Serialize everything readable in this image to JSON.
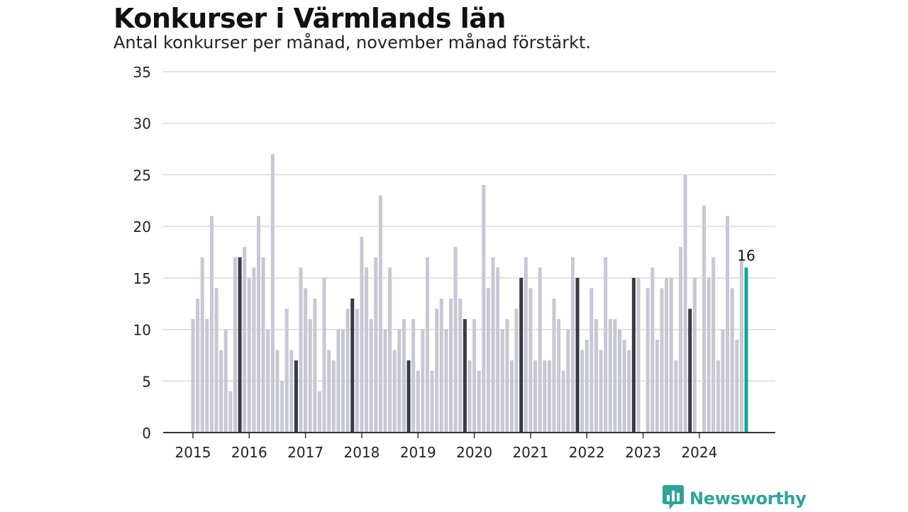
{
  "header": {
    "title": "Konkurser i Värmlands län",
    "subtitle": "Antal konkurser per månad, november månad förstärkt."
  },
  "brand": {
    "name": "Newsworthy",
    "icon": "bar-chart-speech-bubble-icon"
  },
  "colors": {
    "bar": "#c8c7d3",
    "highlight": "#3a3946",
    "latest": "#14a59a",
    "grid": "#d9d9d9",
    "axis": "#333333",
    "brand": "#2ba59a"
  },
  "chart_data": {
    "type": "bar",
    "title": "Konkurser i Värmlands län",
    "subtitle": "Antal konkurser per månad, november månad förstärkt.",
    "xlabel": "",
    "ylabel": "",
    "ylim": [
      0,
      35
    ],
    "yticks": [
      0,
      5,
      10,
      15,
      20,
      25,
      30,
      35
    ],
    "xtick_labels": [
      "2015",
      "2016",
      "2017",
      "2018",
      "2019",
      "2020",
      "2021",
      "2022",
      "2023",
      "2024"
    ],
    "grid": true,
    "start_month": "2015-01",
    "end_month": "2024-11",
    "highlight": "november",
    "last_value_label": "16",
    "values": [
      11,
      13,
      17,
      11,
      21,
      14,
      8,
      10,
      4,
      17,
      17,
      18,
      15,
      16,
      21,
      17,
      10,
      27,
      8,
      5,
      12,
      8,
      7,
      16,
      14,
      11,
      13,
      4,
      15,
      8,
      7,
      10,
      10,
      12,
      13,
      12,
      19,
      16,
      11,
      17,
      23,
      10,
      16,
      8,
      10,
      11,
      7,
      11,
      6,
      10,
      17,
      6,
      12,
      13,
      10,
      13,
      18,
      13,
      11,
      7,
      11,
      6,
      24,
      14,
      17,
      16,
      10,
      11,
      7,
      12,
      15,
      17,
      14,
      7,
      16,
      7,
      7,
      13,
      11,
      6,
      10,
      17,
      15,
      8,
      9,
      14,
      11,
      8,
      17,
      11,
      11,
      10,
      9,
      8,
      15,
      15,
      0,
      14,
      16,
      9,
      14,
      15,
      15,
      7,
      18,
      25,
      12,
      15,
      0,
      22,
      15,
      17,
      7,
      10,
      21,
      14,
      9,
      16.7,
      16
    ]
  }
}
